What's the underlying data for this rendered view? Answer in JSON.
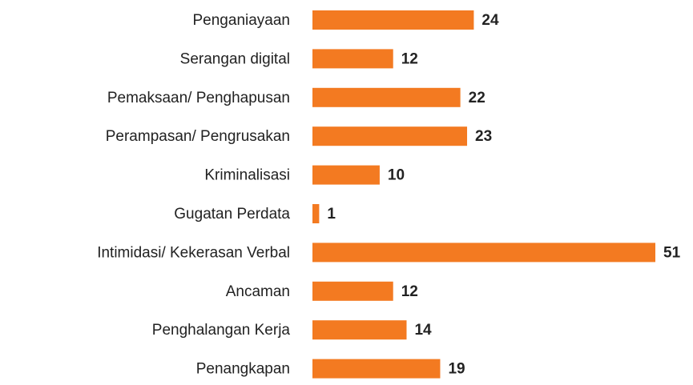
{
  "chart_data": {
    "type": "bar",
    "orientation": "horizontal",
    "categories": [
      "Penganiayaan",
      "Serangan digital",
      "Pemaksaan/ Penghapusan",
      "Perampasan/ Pengrusakan",
      "Kriminalisasi",
      "Gugatan Perdata",
      "Intimidasi/ Kekerasan Verbal",
      "Ancaman",
      "Penghalangan Kerja",
      "Penangkapan"
    ],
    "values": [
      24,
      12,
      22,
      23,
      10,
      1,
      51,
      12,
      14,
      19
    ],
    "color": "#f37a21"
  }
}
